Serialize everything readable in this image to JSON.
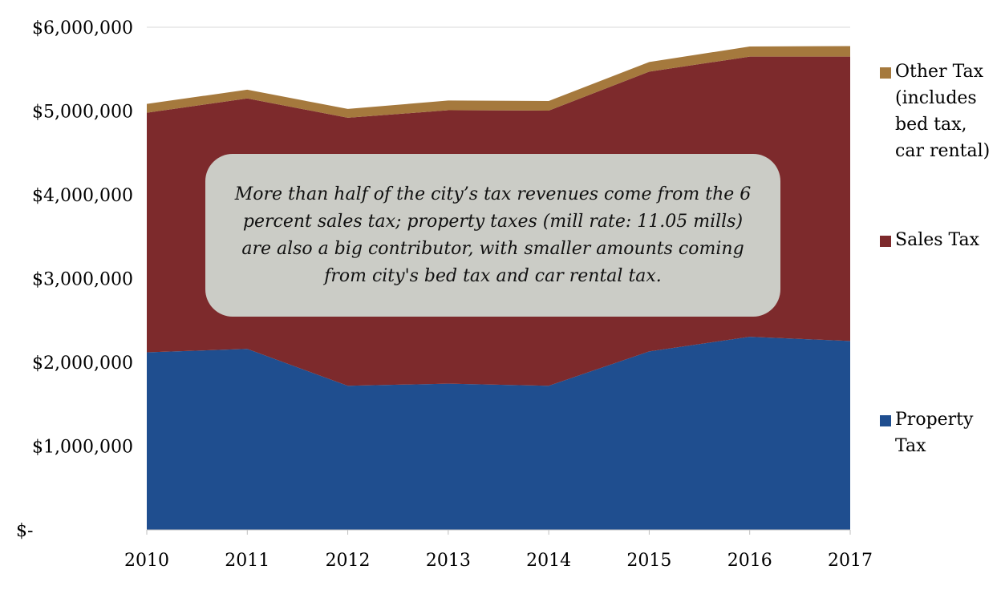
{
  "chart_data": {
    "type": "area",
    "stacked": true,
    "x": [
      "2010",
      "2011",
      "2012",
      "2013",
      "2014",
      "2015",
      "2016",
      "2017"
    ],
    "series": [
      {
        "name": "Property Tax",
        "color": "#1f4e8f",
        "values": [
          2120000,
          2160000,
          1720000,
          1745000,
          1720000,
          2130000,
          2305000,
          2255000
        ]
      },
      {
        "name": "Sales Tax",
        "color": "#7d2a2c",
        "values": [
          2860000,
          2990000,
          3200000,
          3265000,
          3285000,
          3340000,
          3345000,
          3395000
        ]
      },
      {
        "name": "Other Tax (includes bed tax, car rental)",
        "color": "#a5793d",
        "values": [
          105000,
          105000,
          105000,
          115000,
          115000,
          115000,
          120000,
          125000
        ]
      }
    ],
    "ylim": [
      0,
      6000000
    ],
    "y_ticks": [
      "$-",
      "$1,000,000",
      "$2,000,000",
      "$3,000,000",
      "$4,000,000",
      "$5,000,000",
      "$6,000,000"
    ],
    "grid": "horizontal",
    "legend_position": "right",
    "annotation": "More than half of the city’s tax revenues come from the 6 percent sales tax; property taxes (mill rate: 11.05 mills) are also a big contributor, with smaller amounts coming from city's bed tax and car rental tax."
  },
  "legend": [
    {
      "lines": [
        "Other Tax",
        "(includes",
        "bed tax,",
        "car rental)"
      ]
    },
    {
      "lines": [
        "Sales Tax"
      ]
    },
    {
      "lines": [
        "Property",
        "Tax"
      ]
    }
  ]
}
